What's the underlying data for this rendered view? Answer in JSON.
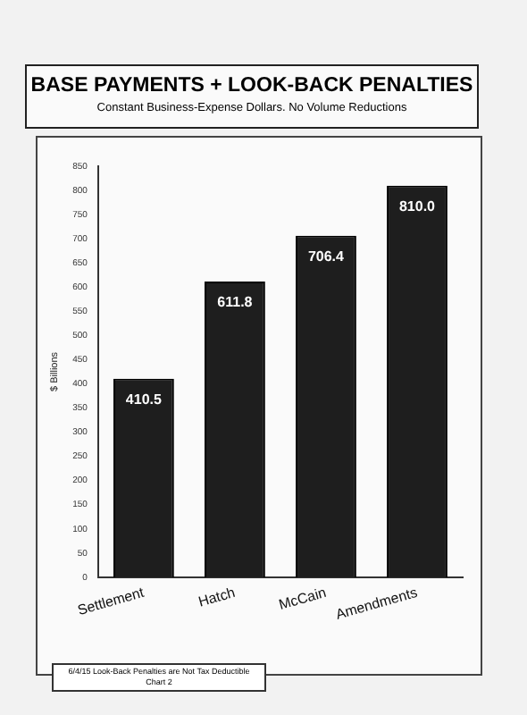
{
  "chart_data": {
    "type": "bar",
    "title": "BASE PAYMENTS + LOOK-BACK PENALTIES",
    "subtitle": "Constant Business-Expense  Dollars.  No Volume Reductions",
    "ylabel": "$ Billions",
    "categories": [
      "Settlement",
      "Hatch",
      "McCain",
      "Amendments"
    ],
    "values": [
      410.5,
      611.8,
      706.4,
      810.0
    ],
    "value_labels": [
      "410.5",
      "611.8",
      "706.4",
      "810.0"
    ],
    "color": "#1e1e1e",
    "ylim": [
      0,
      850
    ],
    "yticks": [
      0,
      50,
      100,
      150,
      200,
      250,
      300,
      350,
      400,
      450,
      500,
      550,
      600,
      650,
      700,
      750,
      800,
      850
    ],
    "grid": false,
    "annotations": [
      "6/4/15 Look-Back Penalties are Not Tax Deductible",
      "Chart 2"
    ]
  }
}
